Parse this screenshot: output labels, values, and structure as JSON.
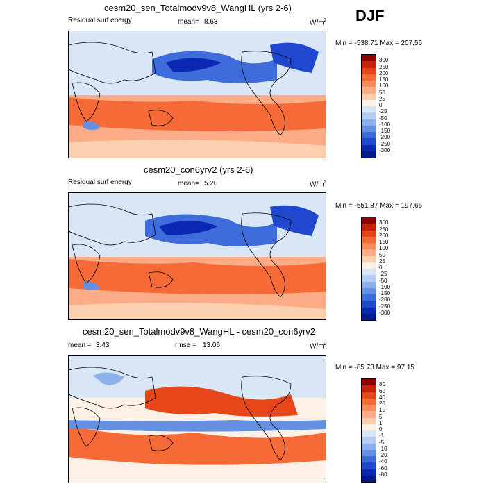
{
  "season": "DJF",
  "chart_data": [
    {
      "type": "heatmap",
      "title": "cesm20_sen_Totalmodv9v8_WangHL (yrs 2-6)",
      "left_label": "Residual surf energy",
      "mean_label": "mean=",
      "mean_value": "8.63",
      "units": "W/m",
      "units_sup": "2",
      "minmax": "Min = -538.71 Max = 207.56",
      "legend_levels": [
        "300",
        "250",
        "200",
        "150",
        "100",
        "50",
        "25",
        "0",
        "-25",
        "-50",
        "-100",
        "-150",
        "-200",
        "-250",
        "-300"
      ],
      "legend_colors": [
        "#8b0000",
        "#c8200a",
        "#e7451a",
        "#f56a36",
        "#fb8a5c",
        "#fcac86",
        "#fdd0b2",
        "#fdf0e4",
        "#d8e6f6",
        "#b4cdf0",
        "#8cb0ea",
        "#6690e2",
        "#3f6cdb",
        "#1f48cf",
        "#0b28b4",
        "#001a8a"
      ]
    },
    {
      "type": "heatmap",
      "title": "cesm20_con6yrv2 (yrs 2-6)",
      "left_label": "Residual surf energy",
      "mean_label": "mean=",
      "mean_value": "5.20",
      "units": "W/m",
      "units_sup": "2",
      "minmax": "Min = -551.87 Max = 197.66",
      "legend_levels": [
        "300",
        "250",
        "200",
        "150",
        "100",
        "50",
        "25",
        "0",
        "-25",
        "-50",
        "-100",
        "-150",
        "-200",
        "-250",
        "-300"
      ],
      "legend_colors": [
        "#8b0000",
        "#c8200a",
        "#e7451a",
        "#f56a36",
        "#fb8a5c",
        "#fcac86",
        "#fdd0b2",
        "#fdf0e4",
        "#d8e6f6",
        "#b4cdf0",
        "#8cb0ea",
        "#6690e2",
        "#3f6cdb",
        "#1f48cf",
        "#0b28b4",
        "#001a8a"
      ]
    },
    {
      "type": "heatmap",
      "title": "cesm20_sen_Totalmodv9v8_WangHL - cesm20_con6yrv2",
      "mean_label": "mean =",
      "mean_value": "3.43",
      "rmse_label": "rmse =",
      "rmse_value": "13.06",
      "units": "W/m",
      "units_sup": "2",
      "minmax": "Min = -85.73 Max =  97.15",
      "legend_levels": [
        "80",
        "60",
        "40",
        "20",
        "10",
        "5",
        "1",
        "0",
        "-1",
        "-5",
        "-10",
        "-20",
        "-40",
        "-60",
        "-80"
      ],
      "legend_colors": [
        "#8b0000",
        "#c8200a",
        "#e7451a",
        "#f56a36",
        "#fb8a5c",
        "#fcac86",
        "#fdd0b2",
        "#fdf0e4",
        "#d8e6f6",
        "#b4cdf0",
        "#8cb0ea",
        "#6690e2",
        "#3f6cdb",
        "#1f48cf",
        "#0b28b4",
        "#001a8a"
      ]
    }
  ]
}
